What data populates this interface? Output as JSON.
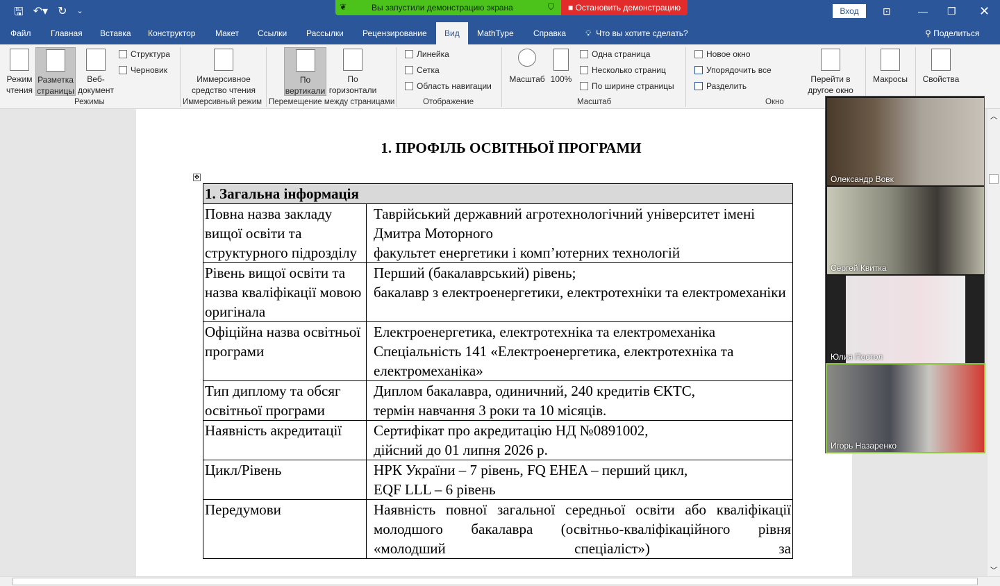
{
  "titlebar": {
    "share_status": "Вы запустили демонстрацию экрана",
    "stop_share": "Остановить демонстрацию",
    "login": "Вход"
  },
  "tabs": [
    "Файл",
    "Главная",
    "Вставка",
    "Конструктор",
    "Макет",
    "Ссылки",
    "Рассылки",
    "Рецензирование",
    "Вид",
    "MathType",
    "Справка"
  ],
  "active_tab": "Вид",
  "tell_me": "Что вы хотите сделать?",
  "share": "Поделиться",
  "ribbon": {
    "modes": {
      "read": "Режим чтения",
      "layout": "Разметка страницы",
      "web": "Веб-документ",
      "outline": "Структура",
      "draft": "Черновик",
      "group": "Режимы"
    },
    "immersive": {
      "reader": "Иммерсивное средство чтения",
      "group": "Иммерсивный режим"
    },
    "movement": {
      "vertical": "По вертикали",
      "horizontal": "По горизонтали",
      "group": "Перемещение между страницами"
    },
    "show": {
      "ruler": "Линейка",
      "grid": "Сетка",
      "nav": "Область навигации",
      "group": "Отображение"
    },
    "zoom": {
      "zoom": "Масштаб",
      "pct": "100%",
      "one": "Одна страница",
      "multi": "Несколько страниц",
      "width": "По ширине страницы",
      "group": "Масштаб"
    },
    "window": {
      "new": "Новое окно",
      "arrange": "Упорядочить все",
      "split": "Разделить",
      "switch": "Перейти в другое окно",
      "group": "Окно"
    },
    "macros": "Макросы",
    "props": "Свойства"
  },
  "doc": {
    "title": "1. ПРОФІЛЬ ОСВІТНЬОЇ ПРОГРАМИ",
    "section": "1. Загальна інформація",
    "rows": [
      {
        "k": "Повна назва закладу вищої освіти та структурного підрозділу",
        "v": [
          "Таврійський державний агротехнологічний університет імені Дмитра Моторного",
          "факультет  енергетики і комп’ютерних технологій"
        ]
      },
      {
        "k": "Рівень вищої освіти та назва кваліфікації мовою оригінала",
        "v": [
          "Перший (бакалаврський) рівень;",
          "бакалавр з електроенергетики, електротехніки та електромеханіки"
        ]
      },
      {
        "k": "Офіційна назва освітньої програми",
        "v": [
          "Електроенергетика, електротехніка та електромеханіка",
          "Спеціальність 141 «Електроенергетика, електротехніка та електромеханіка»"
        ]
      },
      {
        "k": "Тип диплому та обсяг освітньої програми",
        "v": [
          "Диплом бакалавра, одиничний, 240 кредитів ЄКТС,",
          "термін навчання 3 роки та 10 місяців."
        ]
      },
      {
        "k": "Наявність акредитації",
        "v": [
          "Сертифікат про акредитацію НД №0891002,",
          "дійсний до 01 липня 2026 р."
        ]
      },
      {
        "k": "Цикл/Рівень",
        "v": [
          "НРК України  –  7 рівень,  FQ  EHEA  – перший цикл,",
          "EQF LLL – 6 рівень"
        ]
      },
      {
        "k": "Передумови",
        "v": [
          "Наявність повної загальної середньої освіти або кваліфікації молодшого бакалавра (освітньо-кваліфікаційного рівня «молодший спеціаліст») за"
        ]
      }
    ]
  },
  "participants": [
    "Олександр Вовк",
    "Сергей Квитка",
    "Юлия Постол",
    "Игорь Назаренко"
  ],
  "colors": {
    "word_blue": "#2b579a",
    "share_green": "#4cc31a",
    "share_red": "#e22c2c",
    "speaker": "#8cc63f"
  }
}
